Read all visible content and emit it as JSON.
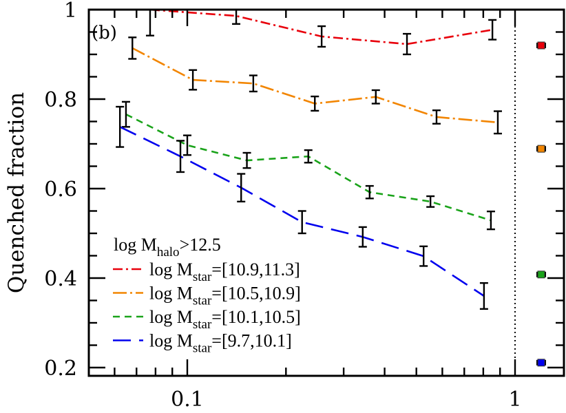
{
  "chart_data": {
    "type": "line",
    "title": "",
    "panel_label": "(b)",
    "xlabel": "",
    "ylabel": "Quenched fraction",
    "xscale": "log",
    "xlim": [
      0.05,
      1.41
    ],
    "ylim": [
      0.18,
      1.0
    ],
    "xticks": [
      {
        "value": 0.1,
        "label": "0.1"
      },
      {
        "value": 1,
        "label": "1"
      }
    ],
    "yticks": [
      {
        "value": 0.2,
        "label": "0.2"
      },
      {
        "value": 0.4,
        "label": "0.4"
      },
      {
        "value": 0.6,
        "label": "0.6"
      },
      {
        "value": 0.8,
        "label": "0.8"
      },
      {
        "value": 1.0,
        "label": "1"
      }
    ],
    "grid": false,
    "vertical_reference_line": {
      "x": 1,
      "style": "dotted"
    },
    "legend": {
      "placement": "bottom-left",
      "title_parts": {
        "pre": "log M",
        "sub": "halo",
        "post": ">12.5"
      }
    },
    "series": [
      {
        "name": "log Mstar=[10.9,11.3]",
        "label_parts": {
          "pre": "log M",
          "sub": "star",
          "post": "=[10.9,11.3]"
        },
        "color": "#e8000b",
        "dash": "dash-dot",
        "x": [
          0.077,
          0.141,
          0.257,
          0.468,
          0.853
        ],
        "y": [
          1.0,
          0.986,
          0.94,
          0.923,
          0.955
        ],
        "yerr": [
          0.058,
          0.018,
          0.023,
          0.023,
          0.022
        ],
        "offset_point": {
          "y": 0.92,
          "yerr": 0.004
        }
      },
      {
        "name": "log Mstar=[10.5,10.9]",
        "label_parts": {
          "pre": "log M",
          "sub": "star",
          "post": "=[10.5,10.9]"
        },
        "color": "#f28500",
        "dash": "long-dash-dot",
        "x": [
          0.068,
          0.104,
          0.159,
          0.245,
          0.376,
          0.576,
          0.886
        ],
        "y": [
          0.914,
          0.843,
          0.835,
          0.79,
          0.805,
          0.76,
          0.748
        ],
        "yerr": [
          0.024,
          0.022,
          0.018,
          0.016,
          0.015,
          0.015,
          0.025
        ],
        "offset_point": {
          "y": 0.689,
          "yerr": 0.004
        }
      },
      {
        "name": "log Mstar=[10.1,10.5]",
        "label_parts": {
          "pre": "log M",
          "sub": "star",
          "post": "=[10.1,10.5]"
        },
        "color": "#1aa31a",
        "dash": "short-dash",
        "x": [
          0.065,
          0.1,
          0.152,
          0.234,
          0.36,
          0.552,
          0.844
        ],
        "y": [
          0.766,
          0.697,
          0.663,
          0.672,
          0.592,
          0.571,
          0.529
        ],
        "yerr": [
          0.028,
          0.022,
          0.017,
          0.014,
          0.014,
          0.012,
          0.02
        ],
        "offset_point": {
          "y": 0.408,
          "yerr": 0.004
        }
      },
      {
        "name": "log Mstar=[9.7,10.1]",
        "label_parts": {
          "pre": "log M",
          "sub": "star",
          "post": "=[9.7,10.1]"
        },
        "color": "#0000ee",
        "dash": "long-dash",
        "x": [
          0.0623,
          0.0953,
          0.146,
          0.224,
          0.343,
          0.526,
          0.804
        ],
        "y": [
          0.738,
          0.672,
          0.602,
          0.525,
          0.492,
          0.449,
          0.36
        ],
        "yerr": [
          0.045,
          0.035,
          0.031,
          0.025,
          0.022,
          0.022,
          0.029
        ],
        "offset_point": {
          "y": 0.211,
          "yerr": 0.004
        }
      }
    ]
  }
}
